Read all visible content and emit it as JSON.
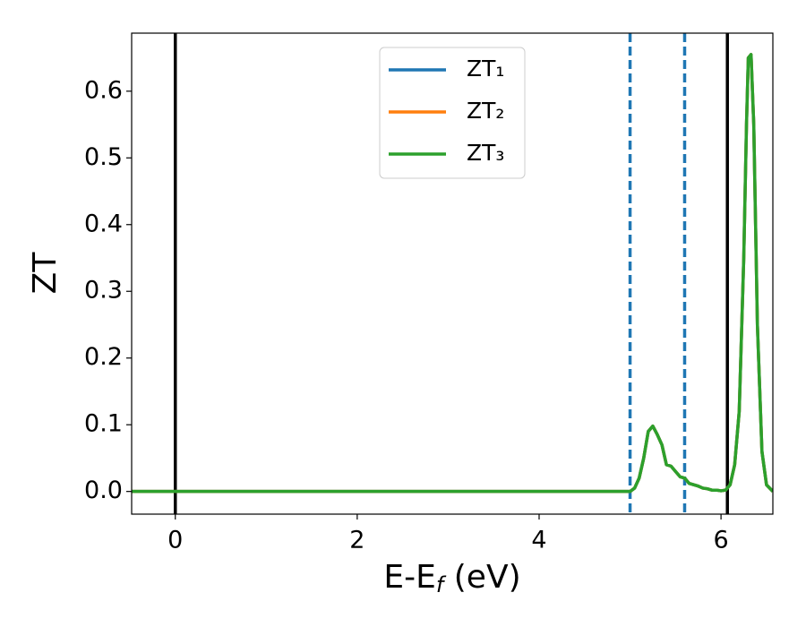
{
  "chart_data": {
    "type": "line",
    "x_label": {
      "text": "E-E",
      "subscript": "f",
      "suffix": " (eV)"
    },
    "y_label": "ZT",
    "xlim": [
      -0.48,
      6.57
    ],
    "ylim": [
      -0.034,
      0.687
    ],
    "xticks": [
      0,
      2,
      4,
      6
    ],
    "yticks": [
      {
        "value": 0,
        "label": "0.0"
      },
      0.1,
      0.2,
      0.3,
      0.4,
      0.5,
      0.6
    ],
    "legend": "upper center",
    "x": [
      -0.48,
      5.0,
      5.05,
      5.1,
      5.15,
      5.2,
      5.25,
      5.3,
      5.35,
      5.4,
      5.45,
      5.5,
      5.55,
      5.6,
      5.65,
      5.7,
      5.75,
      5.8,
      5.85,
      5.9,
      5.95,
      6.0,
      6.05,
      6.1,
      6.15,
      6.2,
      6.25,
      6.28,
      6.3,
      6.33,
      6.36,
      6.38,
      6.4,
      6.45,
      6.5,
      6.57
    ],
    "series": [
      {
        "name": "ZT₁",
        "color": "#1f77b4",
        "values": [
          0,
          0,
          0.005,
          0.02,
          0.05,
          0.09,
          0.098,
          0.085,
          0.07,
          0.04,
          0.038,
          0.03,
          0.022,
          0.02,
          0.012,
          0.01,
          0.008,
          0.005,
          0.004,
          0.002,
          0.002,
          0.001,
          0.002,
          0.01,
          0.04,
          0.12,
          0.35,
          0.55,
          0.65,
          0.655,
          0.55,
          0.4,
          0.25,
          0.06,
          0.01,
          0
        ]
      },
      {
        "name": "ZT₂",
        "color": "#ff7f0e",
        "values": [
          0,
          0,
          0.005,
          0.02,
          0.05,
          0.09,
          0.098,
          0.085,
          0.07,
          0.04,
          0.038,
          0.03,
          0.022,
          0.02,
          0.012,
          0.01,
          0.008,
          0.005,
          0.004,
          0.002,
          0.002,
          0.001,
          0.002,
          0.01,
          0.04,
          0.12,
          0.35,
          0.55,
          0.65,
          0.655,
          0.55,
          0.4,
          0.25,
          0.06,
          0.01,
          0
        ]
      },
      {
        "name": "ZT₃",
        "color": "#2ca02c",
        "values": [
          0,
          0,
          0.005,
          0.02,
          0.05,
          0.09,
          0.098,
          0.085,
          0.07,
          0.04,
          0.038,
          0.03,
          0.022,
          0.02,
          0.012,
          0.01,
          0.008,
          0.005,
          0.004,
          0.002,
          0.002,
          0.001,
          0.002,
          0.01,
          0.04,
          0.12,
          0.35,
          0.55,
          0.65,
          0.655,
          0.55,
          0.4,
          0.25,
          0.06,
          0.01,
          0
        ]
      }
    ],
    "vlines": [
      {
        "x": 0,
        "color": "#000000",
        "style": "solid"
      },
      {
        "x": 6.07,
        "color": "#000000",
        "style": "solid"
      },
      {
        "x": 5.0,
        "color": "#1f77b4",
        "style": "dashed"
      },
      {
        "x": 5.6,
        "color": "#1f77b4",
        "style": "dashed"
      }
    ]
  }
}
